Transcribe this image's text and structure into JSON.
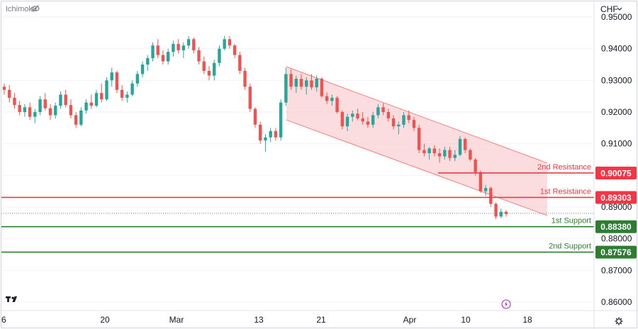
{
  "indicator": {
    "label": "Ichimoku",
    "icon": "eye-slash-icon"
  },
  "currency": {
    "label": "CHF",
    "icon": "chevron-down-icon"
  },
  "logo": {
    "text": "TV",
    "icon": "tradingview-logo-icon"
  },
  "settings": {
    "icon": "gear-icon"
  },
  "replay": {
    "icon": "lightning-icon"
  },
  "colors": {
    "up": "#26a69a",
    "down": "#ef5350",
    "channel_fill": "#f8c7c9",
    "channel_line": "#f2807f",
    "resistance": "#f23645",
    "support": "#2e7d32",
    "axis_text": "#131722",
    "grid": "#f0f3fa"
  },
  "chart_data": {
    "type": "candlestick",
    "y_axis": {
      "min": 0.855,
      "max": 0.955,
      "ticks": [
        "0.95000",
        "0.94000",
        "0.93000",
        "0.92000",
        "0.91000",
        "0.90000",
        "0.89000",
        "0.88000",
        "0.87000",
        "0.86000"
      ]
    },
    "x_axis": {
      "ticks": [
        "6",
        "20",
        "Mar",
        "13",
        "21",
        "Apr",
        "10",
        "18"
      ]
    },
    "levels": [
      {
        "name": "2nd Resistance",
        "value": "0.90075",
        "kind": "resistance"
      },
      {
        "name": "1st Resistance",
        "value": "0.89303",
        "kind": "resistance"
      },
      {
        "name": "1st Support",
        "value": "0.88380",
        "kind": "support"
      },
      {
        "name": "2nd Support",
        "value": "0.87576",
        "kind": "support"
      }
    ],
    "channel": {
      "upper_start": 0.9343,
      "upper_end": 0.9039,
      "lower_start": 0.9175,
      "lower_end": 0.8873
    },
    "current_price": 0.888,
    "candles": [
      [
        0.928,
        0.929,
        0.9255,
        0.927
      ],
      [
        0.927,
        0.9285,
        0.923,
        0.9245
      ],
      [
        0.9245,
        0.926,
        0.921,
        0.9222
      ],
      [
        0.9222,
        0.9235,
        0.919,
        0.92
      ],
      [
        0.92,
        0.9225,
        0.9185,
        0.9215
      ],
      [
        0.9215,
        0.923,
        0.9175,
        0.9185
      ],
      [
        0.9185,
        0.921,
        0.9165,
        0.92
      ],
      [
        0.92,
        0.925,
        0.919,
        0.924
      ],
      [
        0.924,
        0.926,
        0.9205,
        0.9212
      ],
      [
        0.9212,
        0.9225,
        0.9175,
        0.919
      ],
      [
        0.919,
        0.923,
        0.918,
        0.922
      ],
      [
        0.922,
        0.9265,
        0.921,
        0.9255
      ],
      [
        0.9255,
        0.927,
        0.9215,
        0.9222
      ],
      [
        0.9222,
        0.924,
        0.918,
        0.919
      ],
      [
        0.919,
        0.92,
        0.915,
        0.916
      ],
      [
        0.916,
        0.9215,
        0.9155,
        0.9205
      ],
      [
        0.9205,
        0.924,
        0.9195,
        0.923
      ],
      [
        0.923,
        0.9255,
        0.921,
        0.922
      ],
      [
        0.922,
        0.927,
        0.9215,
        0.926
      ],
      [
        0.926,
        0.929,
        0.923,
        0.924
      ],
      [
        0.924,
        0.931,
        0.9235,
        0.93
      ],
      [
        0.93,
        0.934,
        0.928,
        0.9325
      ],
      [
        0.9325,
        0.933,
        0.926,
        0.927
      ],
      [
        0.927,
        0.9285,
        0.9235,
        0.9245
      ],
      [
        0.9245,
        0.9265,
        0.923,
        0.9255
      ],
      [
        0.9255,
        0.93,
        0.925,
        0.929
      ],
      [
        0.929,
        0.933,
        0.928,
        0.932
      ],
      [
        0.932,
        0.936,
        0.931,
        0.935
      ],
      [
        0.935,
        0.938,
        0.933,
        0.937
      ],
      [
        0.937,
        0.942,
        0.936,
        0.941
      ],
      [
        0.941,
        0.943,
        0.937,
        0.938
      ],
      [
        0.938,
        0.9395,
        0.935,
        0.936
      ],
      [
        0.936,
        0.94,
        0.935,
        0.939
      ],
      [
        0.939,
        0.9425,
        0.9375,
        0.9415
      ],
      [
        0.9415,
        0.943,
        0.9385,
        0.9395
      ],
      [
        0.9395,
        0.942,
        0.937,
        0.941
      ],
      [
        0.941,
        0.944,
        0.94,
        0.943
      ],
      [
        0.943,
        0.9435,
        0.9385,
        0.9395
      ],
      [
        0.9395,
        0.9405,
        0.935,
        0.936
      ],
      [
        0.936,
        0.9375,
        0.932,
        0.933
      ],
      [
        0.933,
        0.9345,
        0.93,
        0.9315
      ],
      [
        0.9315,
        0.9365,
        0.93,
        0.9355
      ],
      [
        0.9355,
        0.941,
        0.9345,
        0.94
      ],
      [
        0.94,
        0.944,
        0.9395,
        0.943
      ],
      [
        0.943,
        0.944,
        0.94,
        0.941
      ],
      [
        0.941,
        0.9415,
        0.937,
        0.938
      ],
      [
        0.938,
        0.939,
        0.932,
        0.933
      ],
      [
        0.933,
        0.934,
        0.927,
        0.928
      ],
      [
        0.928,
        0.929,
        0.92,
        0.921
      ],
      [
        0.921,
        0.9215,
        0.915,
        0.916
      ],
      [
        0.916,
        0.917,
        0.91,
        0.911
      ],
      [
        0.911,
        0.913,
        0.9075,
        0.912
      ],
      [
        0.912,
        0.915,
        0.9105,
        0.914
      ],
      [
        0.914,
        0.915,
        0.911,
        0.912
      ],
      [
        0.912,
        0.924,
        0.911,
        0.923
      ],
      [
        0.923,
        0.934,
        0.922,
        0.932
      ],
      [
        0.932,
        0.9335,
        0.927,
        0.928
      ],
      [
        0.928,
        0.9315,
        0.926,
        0.9305
      ],
      [
        0.9305,
        0.932,
        0.927,
        0.928
      ],
      [
        0.928,
        0.931,
        0.9255,
        0.93
      ],
      [
        0.93,
        0.932,
        0.927,
        0.9278
      ],
      [
        0.9278,
        0.9315,
        0.9265,
        0.9305
      ],
      [
        0.9305,
        0.931,
        0.9245,
        0.925
      ],
      [
        0.925,
        0.9262,
        0.9225,
        0.9235
      ],
      [
        0.9235,
        0.9255,
        0.922,
        0.9245
      ],
      [
        0.9245,
        0.925,
        0.9195,
        0.92
      ],
      [
        0.92,
        0.9205,
        0.9145,
        0.9155
      ],
      [
        0.9155,
        0.9195,
        0.914,
        0.9185
      ],
      [
        0.9185,
        0.9205,
        0.917,
        0.9195
      ],
      [
        0.9195,
        0.921,
        0.9175,
        0.918
      ],
      [
        0.918,
        0.92,
        0.916,
        0.917
      ],
      [
        0.917,
        0.9185,
        0.915,
        0.916
      ],
      [
        0.916,
        0.92,
        0.915,
        0.919
      ],
      [
        0.919,
        0.9225,
        0.918,
        0.9215
      ],
      [
        0.9215,
        0.9228,
        0.919,
        0.92
      ],
      [
        0.92,
        0.921,
        0.917,
        0.918
      ],
      [
        0.918,
        0.919,
        0.9145,
        0.9155
      ],
      [
        0.9155,
        0.917,
        0.913,
        0.916
      ],
      [
        0.916,
        0.92,
        0.915,
        0.919
      ],
      [
        0.919,
        0.9205,
        0.9165,
        0.9175
      ],
      [
        0.9175,
        0.9185,
        0.914,
        0.915
      ],
      [
        0.915,
        0.916,
        0.907,
        0.908
      ],
      [
        0.908,
        0.91,
        0.906,
        0.907
      ],
      [
        0.907,
        0.909,
        0.905,
        0.9085
      ],
      [
        0.9085,
        0.9095,
        0.906,
        0.907
      ],
      [
        0.907,
        0.9085,
        0.904,
        0.906
      ],
      [
        0.906,
        0.909,
        0.905,
        0.908
      ],
      [
        0.908,
        0.909,
        0.9045,
        0.9055
      ],
      [
        0.9055,
        0.908,
        0.9045,
        0.9065
      ],
      [
        0.9065,
        0.9125,
        0.906,
        0.9115
      ],
      [
        0.9115,
        0.912,
        0.907,
        0.908
      ],
      [
        0.908,
        0.9085,
        0.9045,
        0.905
      ],
      [
        0.905,
        0.9055,
        0.9,
        0.901
      ],
      [
        0.901,
        0.9015,
        0.8945,
        0.895
      ],
      [
        0.895,
        0.897,
        0.8935,
        0.896
      ],
      [
        0.896,
        0.8965,
        0.89,
        0.891
      ],
      [
        0.891,
        0.8915,
        0.8862,
        0.887
      ],
      [
        0.887,
        0.8895,
        0.8865,
        0.8885
      ],
      [
        0.8885,
        0.889,
        0.887,
        0.8878
      ]
    ]
  }
}
